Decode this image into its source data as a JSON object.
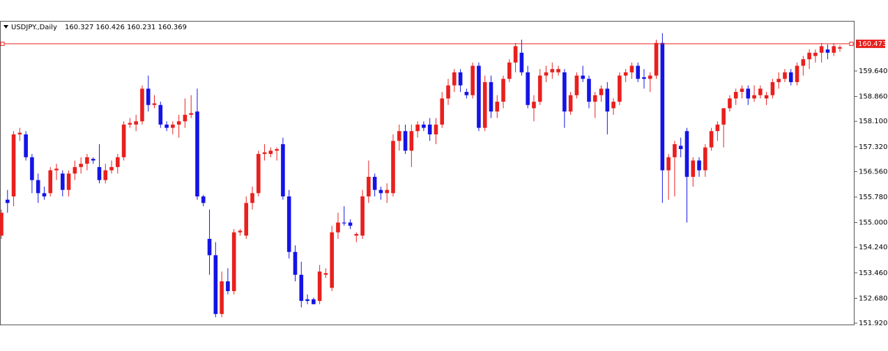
{
  "chart_data": {
    "type": "candlestick",
    "title": "USDJPY.,Daily",
    "ohlc_label": "160.327 160.426 160.231 160.369",
    "up_color": "#e8201e",
    "down_color": "#1414e6",
    "ylim": [
      151.877,
      161.175
    ],
    "yticks": [
      {
        "value": 151.92,
        "label": "151.920"
      },
      {
        "value": 152.68,
        "label": "152.680"
      },
      {
        "value": 153.46,
        "label": "153.460"
      },
      {
        "value": 154.24,
        "label": "154.240"
      },
      {
        "value": 155,
        "label": "155.000"
      },
      {
        "value": 155.78,
        "label": "155.780"
      },
      {
        "value": 156.56,
        "label": "156.560"
      },
      {
        "value": 157.32,
        "label": "157.320"
      },
      {
        "value": 158.1,
        "label": "158.100"
      },
      {
        "value": 158.86,
        "label": "158.860"
      },
      {
        "value": 159.64,
        "label": "159.640"
      }
    ],
    "price_line": {
      "value": 160.473,
      "label": "160.473"
    },
    "price_line_color": "#e8201e",
    "ohlc": [
      [
        154.6,
        155.4,
        154.5,
        155.3
      ],
      [
        155.7,
        156.0,
        155.3,
        155.6
      ],
      [
        155.8,
        157.8,
        155.5,
        157.7
      ],
      [
        157.7,
        157.9,
        157.5,
        157.75
      ],
      [
        157.7,
        157.8,
        156.9,
        157.0
      ],
      [
        157.0,
        157.1,
        155.9,
        156.3
      ],
      [
        156.3,
        156.5,
        155.6,
        155.9
      ],
      [
        155.9,
        156.1,
        155.7,
        155.8
      ],
      [
        155.9,
        156.7,
        155.8,
        156.6
      ],
      [
        156.6,
        156.8,
        156.3,
        156.65
      ],
      [
        156.5,
        156.6,
        155.8,
        156.0
      ],
      [
        156.0,
        156.6,
        155.8,
        156.5
      ],
      [
        156.5,
        156.9,
        156.3,
        156.7
      ],
      [
        156.7,
        157.0,
        156.5,
        156.8
      ],
      [
        156.8,
        157.1,
        156.6,
        157.0
      ],
      [
        156.95,
        157.0,
        156.8,
        156.9
      ],
      [
        156.7,
        157.4,
        156.2,
        156.3
      ],
      [
        156.3,
        156.8,
        156.2,
        156.6
      ],
      [
        156.6,
        156.9,
        156.5,
        156.7
      ],
      [
        156.7,
        157.1,
        156.5,
        157.0
      ],
      [
        157.0,
        158.1,
        156.9,
        158.0
      ],
      [
        158.0,
        158.2,
        157.9,
        158.05
      ],
      [
        158.0,
        158.3,
        157.8,
        158.1
      ],
      [
        158.1,
        159.2,
        158.0,
        159.1
      ],
      [
        159.1,
        159.5,
        158.4,
        158.6
      ],
      [
        158.6,
        158.9,
        158.5,
        158.65
      ],
      [
        158.6,
        158.7,
        157.9,
        158.0
      ],
      [
        158.0,
        158.1,
        157.8,
        157.9
      ],
      [
        157.9,
        158.1,
        157.7,
        158.0
      ],
      [
        158.0,
        158.3,
        157.6,
        158.1
      ],
      [
        158.1,
        158.8,
        157.9,
        158.3
      ],
      [
        158.3,
        158.9,
        158.2,
        158.35
      ],
      [
        158.4,
        159.1,
        155.7,
        155.8
      ],
      [
        155.8,
        155.85,
        155.5,
        155.6
      ],
      [
        154.5,
        155.4,
        153.4,
        154.0
      ],
      [
        154.0,
        154.4,
        152.1,
        152.2
      ],
      [
        152.2,
        153.5,
        152.1,
        153.2
      ],
      [
        153.2,
        153.6,
        152.8,
        152.9
      ],
      [
        152.9,
        154.8,
        152.8,
        154.7
      ],
      [
        154.7,
        154.8,
        154.6,
        154.75
      ],
      [
        154.6,
        155.8,
        154.5,
        155.6
      ],
      [
        155.6,
        156.1,
        155.4,
        155.9
      ],
      [
        155.9,
        157.2,
        155.8,
        157.1
      ],
      [
        157.1,
        157.4,
        156.9,
        157.15
      ],
      [
        157.1,
        157.3,
        157.0,
        157.2
      ],
      [
        157.2,
        157.3,
        156.9,
        157.25
      ],
      [
        157.4,
        157.6,
        155.7,
        155.8
      ],
      [
        155.8,
        156.0,
        153.9,
        154.1
      ],
      [
        154.1,
        154.3,
        153.2,
        153.4
      ],
      [
        153.4,
        153.8,
        152.4,
        152.6
      ],
      [
        152.65,
        152.8,
        152.5,
        152.6
      ],
      [
        152.65,
        152.7,
        152.5,
        152.5
      ],
      [
        152.6,
        153.7,
        152.5,
        153.5
      ],
      [
        153.4,
        153.6,
        153.3,
        153.45
      ],
      [
        153.0,
        154.9,
        152.9,
        154.7
      ],
      [
        154.7,
        155.3,
        154.5,
        155.0
      ],
      [
        155.0,
        155.5,
        154.9,
        154.98
      ],
      [
        155.0,
        155.1,
        154.8,
        154.9
      ],
      [
        154.6,
        154.7,
        154.4,
        154.65
      ],
      [
        154.6,
        156.0,
        154.5,
        155.8
      ],
      [
        155.8,
        156.9,
        155.6,
        156.4
      ],
      [
        156.4,
        156.5,
        155.8,
        156.0
      ],
      [
        156.0,
        156.1,
        155.7,
        155.9
      ],
      [
        155.9,
        156.2,
        155.6,
        156.0
      ],
      [
        155.9,
        157.7,
        155.8,
        157.5
      ],
      [
        157.5,
        158.0,
        157.2,
        157.8
      ],
      [
        157.8,
        158.0,
        157.1,
        157.2
      ],
      [
        157.2,
        158.0,
        156.7,
        157.8
      ],
      [
        157.8,
        158.1,
        157.6,
        158.0
      ],
      [
        158.0,
        158.1,
        157.8,
        157.9
      ],
      [
        158.0,
        158.2,
        157.5,
        157.7
      ],
      [
        157.7,
        158.2,
        157.4,
        158.0
      ],
      [
        158.0,
        159.0,
        157.9,
        158.8
      ],
      [
        158.8,
        159.4,
        158.6,
        159.2
      ],
      [
        159.2,
        159.7,
        159.0,
        159.6
      ],
      [
        159.6,
        159.7,
        159.0,
        159.2
      ],
      [
        159.0,
        159.1,
        158.8,
        158.9
      ],
      [
        158.9,
        159.9,
        158.8,
        159.8
      ],
      [
        159.8,
        159.9,
        157.8,
        157.9
      ],
      [
        157.9,
        159.5,
        157.8,
        159.3
      ],
      [
        159.3,
        159.5,
        158.2,
        158.4
      ],
      [
        158.4,
        158.9,
        158.2,
        158.7
      ],
      [
        158.7,
        159.5,
        158.5,
        159.4
      ],
      [
        159.4,
        160.0,
        159.3,
        159.9
      ],
      [
        159.9,
        160.5,
        159.6,
        160.4
      ],
      [
        160.2,
        160.6,
        159.5,
        159.6
      ],
      [
        159.6,
        159.8,
        158.5,
        158.6
      ],
      [
        158.5,
        158.9,
        158.1,
        158.7
      ],
      [
        158.7,
        159.7,
        158.6,
        159.5
      ],
      [
        159.5,
        159.8,
        159.3,
        159.6
      ],
      [
        159.6,
        159.9,
        159.4,
        159.7
      ],
      [
        159.6,
        159.8,
        159.5,
        159.7
      ],
      [
        159.6,
        159.7,
        157.9,
        158.4
      ],
      [
        158.4,
        159.0,
        158.3,
        158.9
      ],
      [
        158.9,
        159.6,
        158.8,
        159.5
      ],
      [
        159.5,
        159.8,
        159.3,
        159.4
      ],
      [
        159.4,
        159.5,
        158.5,
        158.7
      ],
      [
        158.7,
        159.0,
        158.2,
        158.9
      ],
      [
        158.9,
        159.2,
        158.7,
        159.1
      ],
      [
        159.1,
        159.3,
        157.7,
        158.4
      ],
      [
        158.5,
        158.8,
        158.3,
        158.7
      ],
      [
        158.7,
        159.6,
        158.6,
        159.5
      ],
      [
        159.5,
        159.7,
        159.3,
        159.6
      ],
      [
        159.6,
        159.9,
        159.4,
        159.8
      ],
      [
        159.8,
        159.9,
        159.3,
        159.4
      ],
      [
        159.45,
        159.7,
        159.1,
        159.4
      ],
      [
        159.4,
        159.6,
        159.0,
        159.5
      ],
      [
        159.5,
        160.6,
        159.4,
        160.5
      ],
      [
        160.5,
        160.8,
        155.6,
        156.6
      ],
      [
        156.6,
        157.1,
        155.7,
        157.0
      ],
      [
        157.0,
        157.5,
        155.8,
        157.4
      ],
      [
        157.35,
        157.6,
        157.0,
        157.25
      ],
      [
        157.8,
        157.9,
        155.0,
        156.4
      ],
      [
        156.4,
        157.0,
        156.1,
        156.9
      ],
      [
        156.9,
        157.0,
        156.4,
        156.6
      ],
      [
        156.6,
        157.4,
        156.4,
        157.3
      ],
      [
        157.3,
        157.9,
        157.2,
        157.8
      ],
      [
        157.8,
        158.1,
        157.5,
        158.0
      ],
      [
        158.0,
        158.5,
        157.3,
        158.5
      ],
      [
        158.5,
        158.9,
        158.4,
        158.8
      ],
      [
        158.8,
        159.1,
        158.6,
        159.0
      ],
      [
        159.0,
        159.2,
        158.8,
        159.1
      ],
      [
        159.1,
        159.2,
        158.6,
        158.8
      ],
      [
        158.8,
        159.2,
        158.7,
        158.9
      ],
      [
        158.9,
        159.2,
        158.8,
        159.1
      ],
      [
        158.8,
        159.0,
        158.6,
        158.9
      ],
      [
        158.9,
        159.4,
        158.8,
        159.3
      ],
      [
        159.3,
        159.6,
        159.1,
        159.4
      ],
      [
        159.4,
        159.7,
        159.3,
        159.6
      ],
      [
        159.6,
        159.7,
        159.2,
        159.3
      ],
      [
        159.3,
        159.9,
        159.2,
        159.8
      ],
      [
        159.8,
        160.1,
        159.5,
        160.0
      ],
      [
        160.0,
        160.3,
        159.7,
        160.2
      ],
      [
        160.1,
        160.3,
        159.9,
        160.2
      ],
      [
        160.2,
        160.5,
        159.9,
        160.4
      ],
      [
        160.3,
        160.45,
        160.0,
        160.2
      ],
      [
        160.2,
        160.5,
        160.1,
        160.4
      ],
      [
        160.327,
        160.426,
        160.231,
        160.369
      ]
    ]
  }
}
